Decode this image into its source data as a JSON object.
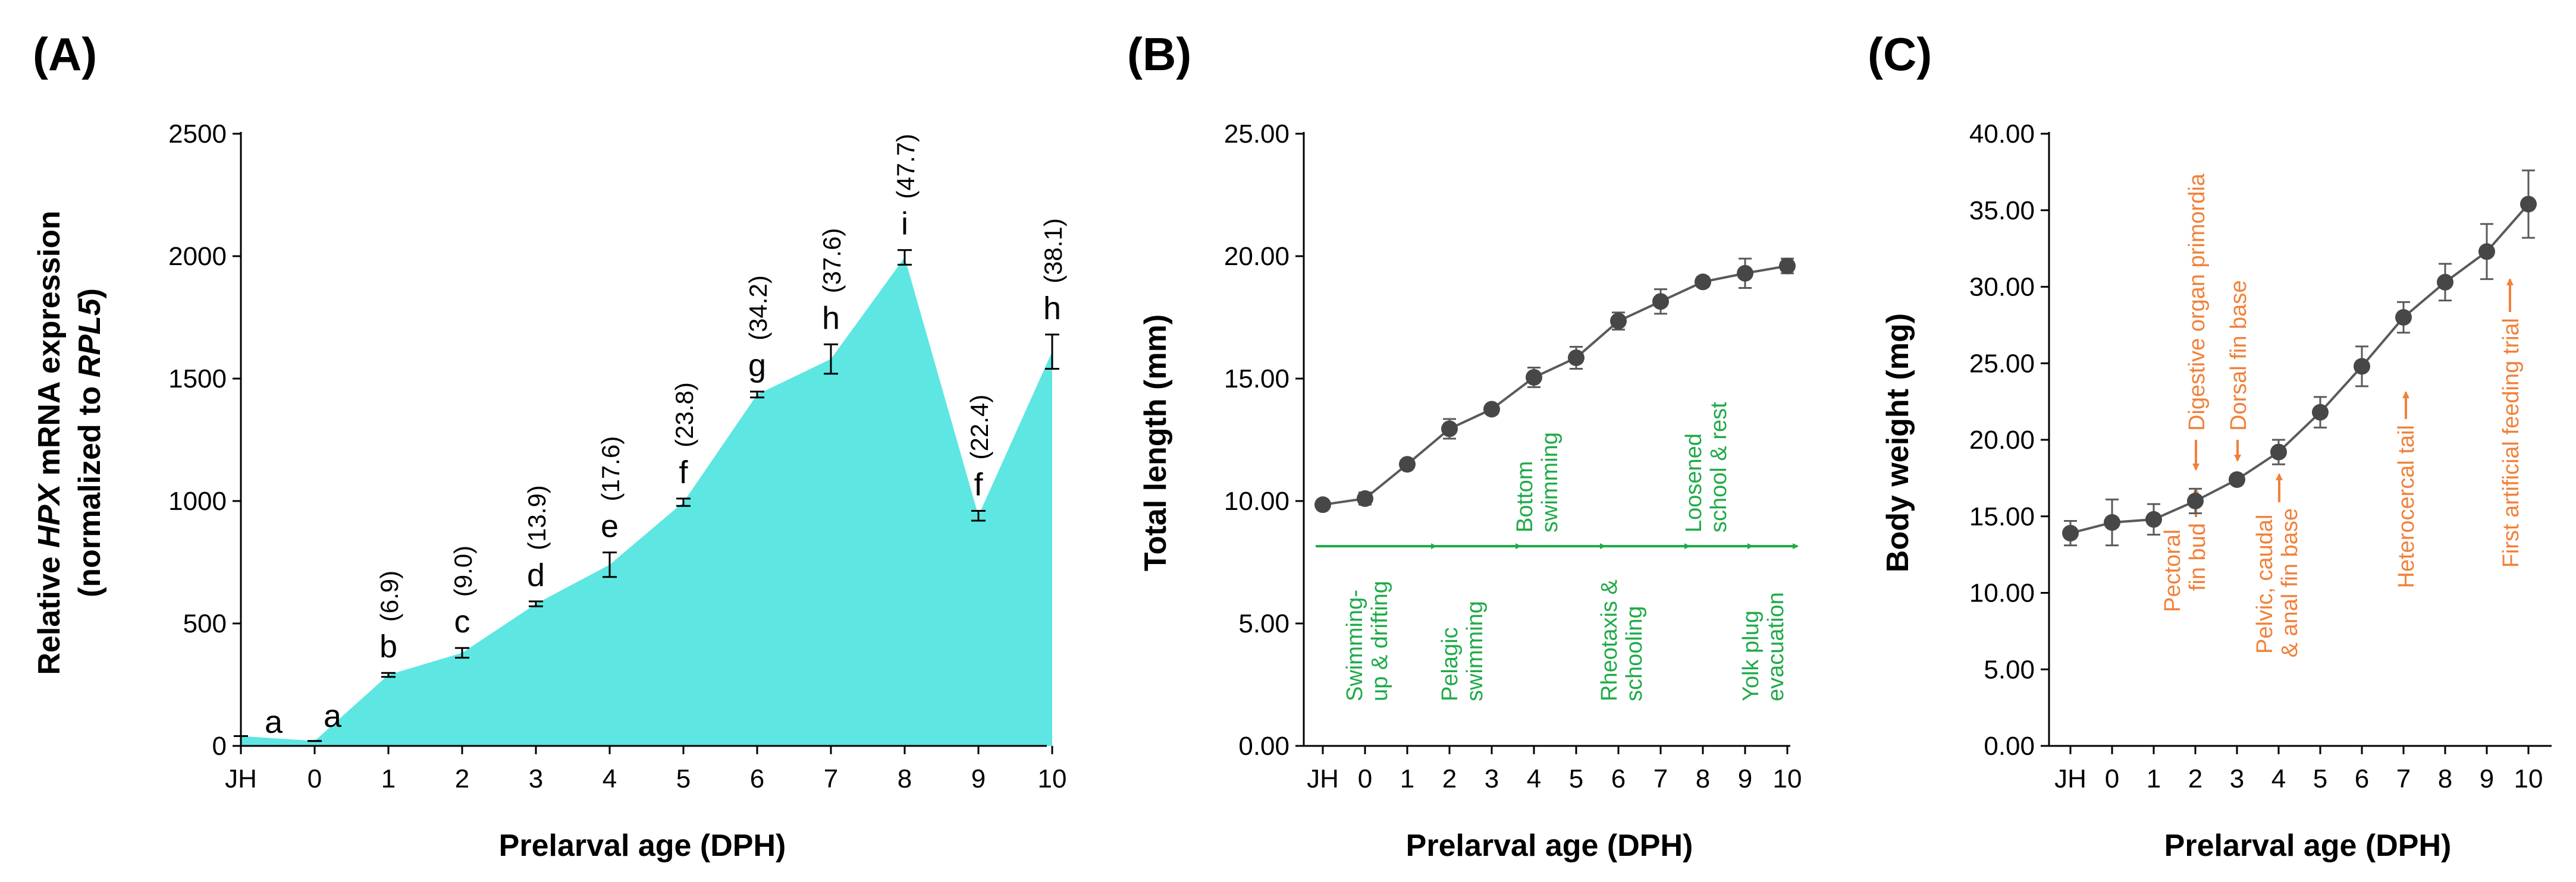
{
  "chart_data": [
    {
      "panel": "(A)",
      "type": "area",
      "x": [
        "JH",
        "0",
        "1",
        "2",
        "3",
        "4",
        "5",
        "6",
        "7",
        "8",
        "9",
        "10"
      ],
      "values": [
        40,
        20,
        290,
        380,
        580,
        740,
        995,
        1435,
        1580,
        1995,
        940,
        1610
      ],
      "errors": [
        0,
        0,
        8,
        20,
        10,
        50,
        15,
        12,
        60,
        30,
        20,
        70
      ],
      "sig_letters": [
        "a",
        "a",
        "b",
        "c",
        "d",
        "e",
        "f",
        "g",
        "h",
        "i",
        "f",
        "h"
      ],
      "fold_changes": [
        "",
        "",
        "(6.9)",
        "(9.0)",
        "(13.9)",
        "(17.6)",
        "(23.8)",
        "(34.2)",
        "(37.6)",
        "(47.7)",
        "(22.4)",
        "(38.1)"
      ],
      "xlabel": "Prelarval age (DPH)",
      "ylabel": {
        "line1_pre": "Relative ",
        "line1_gene": "HPX",
        "line1_post": " mRNA expression",
        "line2_pre": "(normalized to ",
        "line2_gene": "RPL5",
        "line2_post": ")"
      },
      "ylim": [
        0,
        2500
      ],
      "yticks": [
        "0",
        "500",
        "1000",
        "1500",
        "2000",
        "2500"
      ],
      "fill_color": "#5ee6e3"
    },
    {
      "panel": "(B)",
      "type": "line",
      "x": [
        "JH",
        "0",
        "1",
        "2",
        "3",
        "4",
        "5",
        "6",
        "7",
        "8",
        "9",
        "10"
      ],
      "values": [
        9.85,
        10.1,
        11.5,
        12.95,
        13.75,
        15.05,
        15.85,
        17.35,
        18.15,
        18.95,
        19.3,
        19.6
      ],
      "errors": [
        0.15,
        0.25,
        0.15,
        0.4,
        0.15,
        0.4,
        0.45,
        0.35,
        0.5,
        0.2,
        0.6,
        0.3
      ],
      "xlabel": "Prelarval age (DPH)",
      "ylabel": "Total length (mm)",
      "ylim": [
        0,
        25
      ],
      "yticks": [
        "0.00",
        "5.00",
        "10.00",
        "15.00",
        "20.00",
        "25.00"
      ],
      "stages_below": [
        {
          "lines": [
            "Swimming-",
            "up & drifting"
          ]
        },
        {
          "lines": [
            "Pelagic",
            "swimming"
          ]
        },
        {
          "lines": [
            "Rheotaxis &",
            "schooling"
          ]
        },
        {
          "lines": [
            "Yolk plug",
            "evacuation"
          ]
        }
      ],
      "stages_above": [
        {
          "lines": [
            "Bottom",
            "swimming"
          ]
        },
        {
          "lines": [
            "Loosened",
            "school & rest"
          ]
        }
      ]
    },
    {
      "panel": "(C)",
      "type": "line",
      "x": [
        "JH",
        "0",
        "1",
        "2",
        "3",
        "4",
        "5",
        "6",
        "7",
        "8",
        "9",
        "10"
      ],
      "values": [
        13.9,
        14.6,
        14.8,
        16.0,
        17.4,
        19.2,
        21.8,
        24.8,
        28.0,
        30.3,
        32.3,
        35.4
      ],
      "errors": [
        0.8,
        1.5,
        1.0,
        0.8,
        0.3,
        0.8,
        1.0,
        1.3,
        1.0,
        1.2,
        1.8,
        2.2
      ],
      "xlabel": "Prelarval age (DPH)",
      "ylabel": "Body weight (mg)",
      "ylim": [
        0,
        40
      ],
      "yticks": [
        "0.00",
        "5.00",
        "10.00",
        "15.00",
        "20.00",
        "25.00",
        "30.00",
        "35.00",
        "40.00"
      ],
      "events_above": [
        {
          "label": "Digestive organ primordia"
        },
        {
          "label": "Dorsal fin base"
        }
      ],
      "events_below": [
        {
          "lines": [
            "Pectoral",
            "fin bud"
          ]
        },
        {
          "lines": [
            "Pelvic, caudal",
            "& anal fin base"
          ]
        },
        {
          "lines": [
            "Heterocercal tail"
          ]
        },
        {
          "lines": [
            "First artificial feeding trial"
          ]
        }
      ]
    }
  ],
  "colors": {
    "green": "#1faa48",
    "orange": "#f0813a",
    "point": "#474747",
    "line": "#5a5a5a"
  }
}
